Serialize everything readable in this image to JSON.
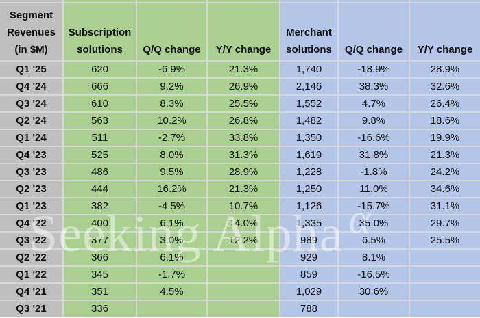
{
  "table": {
    "headers": [
      "Segment\nRevenues\n(in $M)",
      "Subscription\nsolutions",
      "Q/Q change",
      "Y/Y change",
      "Merchant\nsolutions",
      "Q/Q change",
      "Y/Y change"
    ],
    "rows": [
      {
        "quarter": "Q1 '25",
        "subscription": "620",
        "sub_qq": "-6.9%",
        "sub_yy": "21.3%",
        "merchant": "1,740",
        "mer_qq": "-18.9%",
        "mer_yy": "28.9%"
      },
      {
        "quarter": "Q4 '24",
        "subscription": "666",
        "sub_qq": "9.2%",
        "sub_yy": "26.9%",
        "merchant": "2,146",
        "mer_qq": "38.3%",
        "mer_yy": "32.6%"
      },
      {
        "quarter": "Q3 '24",
        "subscription": "610",
        "sub_qq": "8.3%",
        "sub_yy": "25.5%",
        "merchant": "1,552",
        "mer_qq": "4.7%",
        "mer_yy": "26.4%"
      },
      {
        "quarter": "Q2 '24",
        "subscription": "563",
        "sub_qq": "10.2%",
        "sub_yy": "26.8%",
        "merchant": "1,482",
        "mer_qq": "9.8%",
        "mer_yy": "18.6%"
      },
      {
        "quarter": "Q1 '24",
        "subscription": "511",
        "sub_qq": "-2.7%",
        "sub_yy": "33.8%",
        "merchant": "1,350",
        "mer_qq": "-16.6%",
        "mer_yy": "19.9%"
      },
      {
        "quarter": "Q4 '23",
        "subscription": "525",
        "sub_qq": "8.0%",
        "sub_yy": "31.3%",
        "merchant": "1,619",
        "mer_qq": "31.8%",
        "mer_yy": "21.3%"
      },
      {
        "quarter": "Q3 '23",
        "subscription": "486",
        "sub_qq": "9.5%",
        "sub_yy": "28.9%",
        "merchant": "1,228",
        "mer_qq": "-1.8%",
        "mer_yy": "24.2%"
      },
      {
        "quarter": "Q2 '23",
        "subscription": "444",
        "sub_qq": "16.2%",
        "sub_yy": "21.3%",
        "merchant": "1,250",
        "mer_qq": "11.0%",
        "mer_yy": "34.6%"
      },
      {
        "quarter": "Q1 '23",
        "subscription": "382",
        "sub_qq": "-4.5%",
        "sub_yy": "10.7%",
        "merchant": "1,126",
        "mer_qq": "-15.7%",
        "mer_yy": "31.1%"
      },
      {
        "quarter": "Q4 '22",
        "subscription": "400",
        "sub_qq": "6.1%",
        "sub_yy": "14.0%",
        "merchant": "1,335",
        "mer_qq": "35.0%",
        "mer_yy": "29.7%"
      },
      {
        "quarter": "Q3 '22",
        "subscription": "377",
        "sub_qq": "3.0%",
        "sub_yy": "12.2%",
        "merchant": "989",
        "mer_qq": "6.5%",
        "mer_yy": "25.5%"
      },
      {
        "quarter": "Q2 '22",
        "subscription": "366",
        "sub_qq": "6.1%",
        "sub_yy": "",
        "merchant": "929",
        "mer_qq": "8.1%",
        "mer_yy": ""
      },
      {
        "quarter": "Q1 '22",
        "subscription": "345",
        "sub_qq": "-1.7%",
        "sub_yy": "",
        "merchant": "859",
        "mer_qq": "-16.5%",
        "mer_yy": ""
      },
      {
        "quarter": "Q4 '21",
        "subscription": "351",
        "sub_qq": "4.5%",
        "sub_yy": "",
        "merchant": "1,029",
        "mer_qq": "30.6%",
        "mer_yy": ""
      },
      {
        "quarter": "Q3 '21",
        "subscription": "336",
        "sub_qq": "",
        "sub_yy": "",
        "merchant": "788",
        "mer_qq": "",
        "mer_yy": ""
      }
    ]
  },
  "colors": {
    "label_bg": "#bfbfbf",
    "subscription_bg": "#a9d08e",
    "merchant_bg": "#b4c6e7",
    "gridline": "#d6d6d6"
  },
  "watermark": {
    "text": "Seeking Alpha",
    "symbol": "α"
  }
}
